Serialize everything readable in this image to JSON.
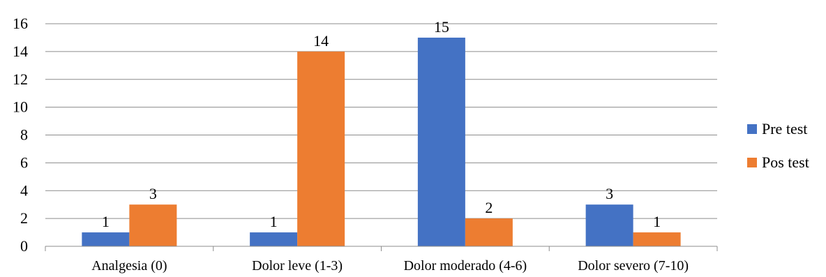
{
  "chart_data": {
    "type": "bar",
    "title": "",
    "xlabel": "",
    "ylabel": "",
    "categories": [
      "Analgesia (0)",
      "Dolor leve (1-3)",
      "Dolor moderado (4-6)",
      "Dolor severo (7-10)"
    ],
    "series": [
      {
        "name": "Pre test",
        "values": [
          1,
          1,
          15,
          3
        ],
        "color": "#4472C4"
      },
      {
        "name": "Pos test",
        "values": [
          3,
          14,
          2,
          1
        ],
        "color": "#ED7D31"
      }
    ],
    "ylim": [
      0,
      16
    ],
    "yticks": [
      0,
      2,
      4,
      6,
      8,
      10,
      12,
      14,
      16
    ],
    "grid": true,
    "legend_position": "right"
  }
}
